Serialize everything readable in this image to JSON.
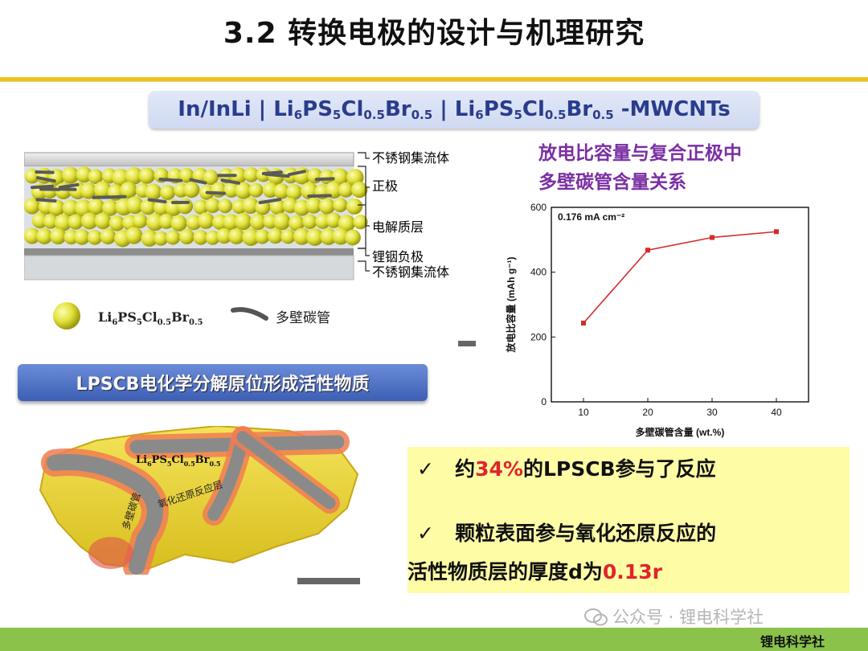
{
  "header": {
    "title": "3.2 转换电极的设计与机理研究"
  },
  "formula": {
    "part1": "In/InLi | Li",
    "s1": "6",
    "t1": "PS",
    "s2": "5",
    "t2": "Cl",
    "s3": "0.5",
    "t3": "Br",
    "s4": "0.5",
    "sep": " | Li",
    "s5": "6",
    "t5": "PS",
    "s6": "5",
    "t6": "Cl",
    "s7": "0.5",
    "t7": "Br",
    "s8": "0.5",
    "tail": " -MWCNTs"
  },
  "schematic": {
    "layers": [
      "不锈钢集流体",
      "正极",
      "电解质层",
      "锂铟负极",
      "不锈钢集流体"
    ],
    "legend_particle": {
      "a": "Li",
      "b": "6",
      "c": "PS",
      "d": "5",
      "e": "Cl",
      "f": "0.5",
      "g": "Br",
      "h": "0.5"
    },
    "legend_tube": "多壁碳管"
  },
  "banner2": "LPSCB电化学分解原位形成活性物质",
  "illustration": {
    "formula": {
      "a": "Li",
      "b": "6",
      "c": "PS",
      "d": "5",
      "e": "Cl",
      "f": "0.5",
      "g": "Br",
      "h": "0.5"
    },
    "tube_label": "多壁碳管",
    "layer_label": "氧化还原反应层"
  },
  "chart_heading": {
    "line1": "放电比容量与复合正极中",
    "line2": "多壁碳管含量关系"
  },
  "chart_data": {
    "type": "line",
    "x": [
      10,
      20,
      30,
      40
    ],
    "y": [
      243,
      468,
      507,
      525
    ],
    "xlabel": "多壁碳管含量 (wt.%)",
    "ylabel": "放电比容量 (mAh g⁻¹)",
    "annotation": "0.176 mA cm⁻²",
    "xticks": [
      10,
      20,
      30,
      40
    ],
    "yticks": [
      0,
      200,
      400,
      600
    ],
    "xlim": [
      5,
      45
    ],
    "ylim": [
      0,
      600
    ],
    "color": "#d62a2a"
  },
  "conclusions": {
    "check": "✓",
    "b1_pre": "约",
    "b1_red": "34%",
    "b1_post": "的LPSCB参与了反应",
    "b2_line1": "颗粒表面参与氧化还原反应的",
    "b2_line2_pre": "活性物质层的厚度d为",
    "b2_line2_red": "0.13r"
  },
  "footer": {
    "watermark": "公众号 · 锂电科学社",
    "source": "锂电科学社"
  }
}
